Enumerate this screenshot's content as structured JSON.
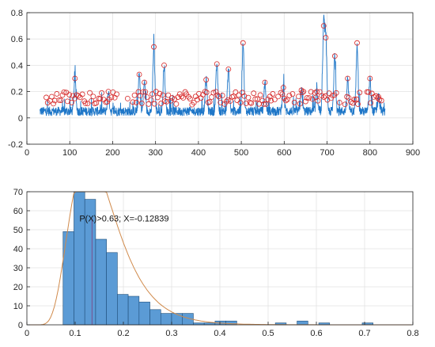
{
  "colors": {
    "signal": "#1f77c8",
    "peak_marker": "#d62728",
    "bar_fill": "#5b9bd5",
    "bar_edge": "#1f4e79",
    "fit_curve": "#d08a4b",
    "marker_line": "#7a4f8f",
    "grid": "#e3e3e3",
    "axis": "#262626"
  },
  "chart_data": [
    {
      "type": "line",
      "title": "",
      "xlabel": "",
      "ylabel": "",
      "xlim": [
        0,
        900
      ],
      "ylim": [
        -0.2,
        0.8
      ],
      "xticks": [
        "0",
        "100",
        "200",
        "300",
        "400",
        "500",
        "600",
        "700",
        "800",
        "900"
      ],
      "yticks": [
        "-0.2",
        "0",
        "0.2",
        "0.4",
        "0.6",
        "0.8"
      ],
      "grid": true,
      "series": [
        {
          "role": "signal",
          "x_range": [
            30,
            835
          ],
          "baseline": 0.05,
          "major_peaks": [
            {
              "x": 112,
              "y": 0.3
            },
            {
              "x": 190,
              "y": 0.2
            },
            {
              "x": 262,
              "y": 0.33
            },
            {
              "x": 274,
              "y": 0.27
            },
            {
              "x": 296,
              "y": 0.54
            },
            {
              "x": 320,
              "y": 0.4
            },
            {
              "x": 418,
              "y": 0.29
            },
            {
              "x": 443,
              "y": 0.41
            },
            {
              "x": 470,
              "y": 0.37
            },
            {
              "x": 504,
              "y": 0.57
            },
            {
              "x": 555,
              "y": 0.27
            },
            {
              "x": 598,
              "y": 0.23
            },
            {
              "x": 640,
              "y": 0.21
            },
            {
              "x": 676,
              "y": 0.2
            },
            {
              "x": 692,
              "y": 0.7
            },
            {
              "x": 697,
              "y": 0.61
            },
            {
              "x": 718,
              "y": 0.47
            },
            {
              "x": 748,
              "y": 0.3
            },
            {
              "x": 770,
              "y": 0.57
            },
            {
              "x": 800,
              "y": 0.3
            },
            {
              "x": 820,
              "y": 0.16
            }
          ]
        },
        {
          "role": "detected-peaks",
          "marker": "circle",
          "threshold_band": [
            0.1,
            0.2
          ]
        }
      ]
    },
    {
      "type": "bar",
      "title": "",
      "xlabel": "",
      "ylabel": "",
      "xlim": [
        0,
        0.8
      ],
      "ylim": [
        0,
        70
      ],
      "xticks": [
        "0",
        "0.1",
        "0.2",
        "0.3",
        "0.4",
        "0.5",
        "0.6",
        "0.7",
        "0.8"
      ],
      "yticks": [
        "0",
        "10",
        "20",
        "30",
        "40",
        "50",
        "60",
        "70"
      ],
      "grid": true,
      "bin_width": 0.0225,
      "bins": [
        {
          "x0": 0.075,
          "count": 49
        },
        {
          "x0": 0.0975,
          "count": 70
        },
        {
          "x0": 0.12,
          "count": 66
        },
        {
          "x0": 0.1425,
          "count": 45
        },
        {
          "x0": 0.165,
          "count": 38
        },
        {
          "x0": 0.1875,
          "count": 16
        },
        {
          "x0": 0.21,
          "count": 15
        },
        {
          "x0": 0.2325,
          "count": 12
        },
        {
          "x0": 0.255,
          "count": 8
        },
        {
          "x0": 0.2775,
          "count": 6
        },
        {
          "x0": 0.3,
          "count": 6
        },
        {
          "x0": 0.3225,
          "count": 6
        },
        {
          "x0": 0.345,
          "count": 1
        },
        {
          "x0": 0.3675,
          "count": 1
        },
        {
          "x0": 0.39,
          "count": 2
        },
        {
          "x0": 0.4125,
          "count": 2
        },
        {
          "x0": 0.515,
          "count": 1
        },
        {
          "x0": 0.56,
          "count": 2
        },
        {
          "x0": 0.605,
          "count": 1
        },
        {
          "x0": 0.695,
          "count": 1
        }
      ],
      "fit_curve": {
        "distribution": "lognormal",
        "mu": -1.92,
        "sigma": 0.38,
        "scale": 11.5
      },
      "marker_x": 0.135,
      "annotation": "P(X)>0.63; X=-0.12839"
    }
  ]
}
